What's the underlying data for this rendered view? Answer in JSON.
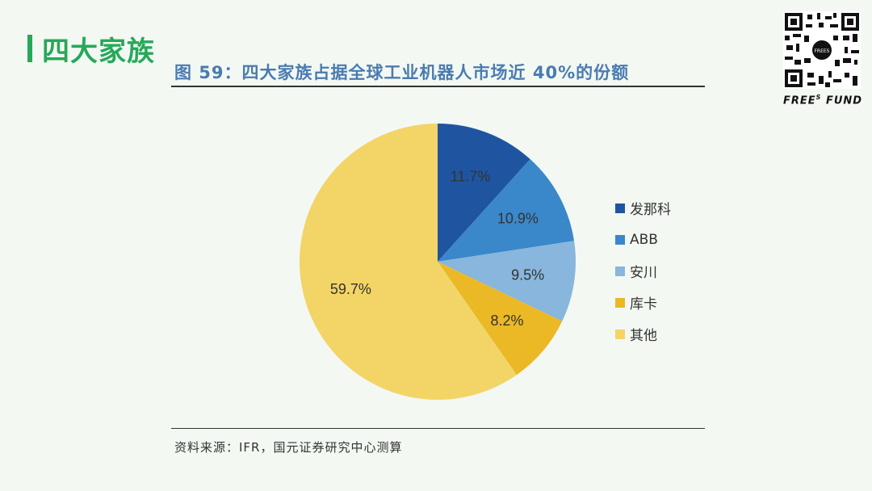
{
  "header": {
    "section_title": "四大家族",
    "figure_title": "图 59：四大家族占据全球工业机器人市场近 40%的份额"
  },
  "brand": {
    "name": "FREE",
    "superscript": "S",
    "suffix": "FUND",
    "qr_center_text": "FREES"
  },
  "source": "资料来源：IFR，国元证券研究中心测算",
  "chart_data": {
    "type": "pie",
    "title": "",
    "slices": [
      {
        "name": "发那科",
        "value": 11.7,
        "label": "11.7%",
        "color": "#1f55a0"
      },
      {
        "name": "ABB",
        "value": 10.9,
        "label": "10.9%",
        "color": "#3a88c9"
      },
      {
        "name": "安川",
        "value": 9.5,
        "label": "9.5%",
        "color": "#88b6dc"
      },
      {
        "name": "库卡",
        "value": 8.2,
        "label": "8.2%",
        "color": "#ebb826"
      },
      {
        "name": "其他",
        "value": 59.7,
        "label": "59.7%",
        "color": "#f3d466"
      }
    ],
    "start": "12 o'clock",
    "direction": "clockwise",
    "legend_position": "right"
  }
}
